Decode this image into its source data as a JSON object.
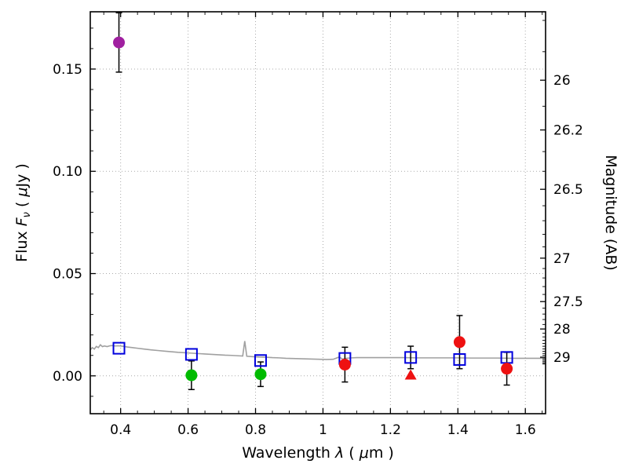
{
  "figure": {
    "background": "#ffffff"
  },
  "chart_data": {
    "type": "scatter",
    "title": "",
    "xlabel": "Wavelength λ ( μm )",
    "ylabel": "Flux Fν ( μJy )",
    "y2label": "Magnitude (AB)",
    "xlim": [
      0.31,
      1.66
    ],
    "ylim": [
      -0.0185,
      0.178
    ],
    "grid": true,
    "grid_color": "#aaaaaa",
    "ab_zeropoint": 23.9,
    "errorbar_color": "#000000",
    "x_minor_step": 0.05,
    "y_minor_step": 0.01,
    "x_ticks": [
      {
        "value": 0.4,
        "label": "0.4"
      },
      {
        "value": 0.6,
        "label": "0.6"
      },
      {
        "value": 0.8,
        "label": "0.8"
      },
      {
        "value": 1.0,
        "label": "1"
      },
      {
        "value": 1.2,
        "label": "1.2"
      },
      {
        "value": 1.4,
        "label": "1.4"
      },
      {
        "value": 1.6,
        "label": "1.6"
      }
    ],
    "y_ticks_left": [
      {
        "value": 0.0,
        "label": "0.00"
      },
      {
        "value": 0.05,
        "label": "0.05"
      },
      {
        "value": 0.1,
        "label": "0.10"
      },
      {
        "value": 0.15,
        "label": "0.15"
      }
    ],
    "y_ticks_right": [
      {
        "mag": 26.0,
        "flux": 0.144544,
        "label": "26"
      },
      {
        "mag": 26.2,
        "flux": 0.120226,
        "label": "26.2"
      },
      {
        "mag": 26.5,
        "flux": 0.091201,
        "label": "26.5"
      },
      {
        "mag": 27.0,
        "flux": 0.057544,
        "label": "27"
      },
      {
        "mag": 27.5,
        "flux": 0.036308,
        "label": "27.5"
      },
      {
        "mag": 28.0,
        "flux": 0.022909,
        "label": "28"
      },
      {
        "mag": 29.0,
        "flux": 0.00912,
        "label": "29"
      }
    ],
    "xlabel_parts": [
      {
        "t": "Wavelength  "
      },
      {
        "t": "λ",
        "i": true
      },
      {
        "t": "  ( "
      },
      {
        "t": "μ",
        "i": true
      },
      {
        "t": "m )"
      }
    ],
    "ylabel_parts": [
      {
        "t": "Flux  "
      },
      {
        "t": "F",
        "i": true
      },
      {
        "t": "ν",
        "i": true,
        "sub": true
      },
      {
        "t": "  ( "
      },
      {
        "t": "μ",
        "i": true
      },
      {
        "t": "Jy )"
      }
    ],
    "series": [
      {
        "name": "model-spectrum",
        "type": "line",
        "color": "#a0a0a0",
        "points": [
          [
            0.31,
            0.0127
          ],
          [
            0.316,
            0.0138
          ],
          [
            0.322,
            0.0131
          ],
          [
            0.328,
            0.0144
          ],
          [
            0.334,
            0.0138
          ],
          [
            0.34,
            0.0152
          ],
          [
            0.346,
            0.0143
          ],
          [
            0.352,
            0.0146
          ],
          [
            0.36,
            0.0143
          ],
          [
            0.368,
            0.0147
          ],
          [
            0.376,
            0.0148
          ],
          [
            0.384,
            0.0146
          ],
          [
            0.392,
            0.0147
          ],
          [
            0.4,
            0.0146
          ],
          [
            0.41,
            0.0144
          ],
          [
            0.42,
            0.0141
          ],
          [
            0.435,
            0.0138
          ],
          [
            0.45,
            0.0135
          ],
          [
            0.47,
            0.0131
          ],
          [
            0.49,
            0.0127
          ],
          [
            0.51,
            0.0124
          ],
          [
            0.53,
            0.0121
          ],
          [
            0.55,
            0.0118
          ],
          [
            0.57,
            0.0115
          ],
          [
            0.59,
            0.0113
          ],
          [
            0.61,
            0.0111
          ],
          [
            0.63,
            0.0109
          ],
          [
            0.65,
            0.0107
          ],
          [
            0.67,
            0.0105
          ],
          [
            0.69,
            0.0103
          ],
          [
            0.71,
            0.0101
          ],
          [
            0.73,
            0.01
          ],
          [
            0.75,
            0.0098
          ],
          [
            0.762,
            0.0097
          ],
          [
            0.768,
            0.017
          ],
          [
            0.774,
            0.0096
          ],
          [
            0.79,
            0.0094
          ],
          [
            0.81,
            0.0092
          ],
          [
            0.83,
            0.0091
          ],
          [
            0.85,
            0.0089
          ],
          [
            0.87,
            0.0088
          ],
          [
            0.89,
            0.0086
          ],
          [
            0.91,
            0.0085
          ],
          [
            0.93,
            0.0084
          ],
          [
            0.95,
            0.0083
          ],
          [
            0.97,
            0.0082
          ],
          [
            0.99,
            0.0081
          ],
          [
            1.01,
            0.008
          ],
          [
            1.03,
            0.0081
          ],
          [
            1.048,
            0.0092
          ],
          [
            1.058,
            0.0082
          ],
          [
            1.07,
            0.0086
          ],
          [
            1.085,
            0.0088
          ],
          [
            1.1,
            0.0089
          ],
          [
            1.13,
            0.0089
          ],
          [
            1.16,
            0.0089
          ],
          [
            1.2,
            0.0089
          ],
          [
            1.24,
            0.0089
          ],
          [
            1.28,
            0.0088
          ],
          [
            1.32,
            0.0088
          ],
          [
            1.36,
            0.0088
          ],
          [
            1.4,
            0.0088
          ],
          [
            1.44,
            0.0087
          ],
          [
            1.48,
            0.0087
          ],
          [
            1.52,
            0.0087
          ],
          [
            1.56,
            0.0086
          ],
          [
            1.6,
            0.0086
          ],
          [
            1.64,
            0.0086
          ],
          [
            1.66,
            0.0086
          ]
        ]
      },
      {
        "name": "model-photometry",
        "type": "scatter",
        "marker": "open-square",
        "color": "#0000dd",
        "points": [
          {
            "x": 0.395,
            "y": 0.0135
          },
          {
            "x": 0.61,
            "y": 0.0105
          },
          {
            "x": 0.815,
            "y": 0.0075
          },
          {
            "x": 1.065,
            "y": 0.0085
          },
          {
            "x": 1.26,
            "y": 0.009,
            "yerr": 0.0055
          },
          {
            "x": 1.405,
            "y": 0.008
          },
          {
            "x": 1.545,
            "y": 0.009
          }
        ]
      },
      {
        "name": "observed-green",
        "type": "scatter",
        "marker": "circle",
        "color": "#00bb00",
        "points": [
          {
            "x": 0.61,
            "y": 0.0003,
            "yerr": 0.007
          },
          {
            "x": 0.815,
            "y": 0.0008,
            "yerr": 0.006
          }
        ]
      },
      {
        "name": "observed-red",
        "type": "scatter",
        "marker": "circle",
        "color": "#ee1111",
        "points": [
          {
            "x": 1.065,
            "y": 0.0055,
            "yerr": 0.0085
          },
          {
            "x": 1.405,
            "y": 0.0165,
            "yerr": 0.013
          },
          {
            "x": 1.545,
            "y": 0.0035,
            "yerr": 0.008
          }
        ]
      },
      {
        "name": "observed-magenta",
        "type": "scatter",
        "marker": "circle",
        "color": "#a020a0",
        "points": [
          {
            "x": 0.395,
            "y": 0.163,
            "yerr": 0.0145
          }
        ]
      },
      {
        "name": "upper-limit",
        "type": "scatter",
        "marker": "triangle-up",
        "color": "#ee1111",
        "points": [
          {
            "x": 1.26,
            "y": 0.0005
          }
        ]
      }
    ]
  }
}
